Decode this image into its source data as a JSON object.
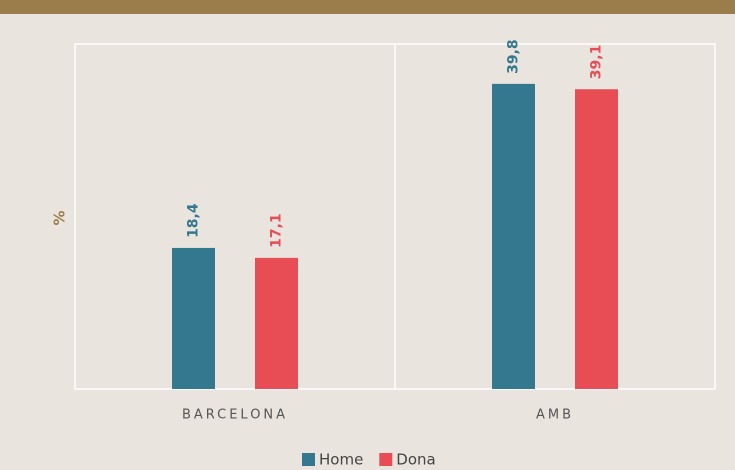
{
  "chart_data": {
    "type": "bar",
    "categories": [
      "BARCELONA",
      "AMB"
    ],
    "series": [
      {
        "name": "Home",
        "color": "#33788f",
        "values": [
          18.4,
          39.8
        ],
        "value_labels": [
          "18,4",
          "39,8"
        ]
      },
      {
        "name": "Dona",
        "color": "#e84c55",
        "values": [
          17.1,
          39.1
        ],
        "value_labels": [
          "17,1",
          "39,1"
        ]
      }
    ],
    "ylabel": "%",
    "ylim": [
      0,
      45
    ],
    "legend": "bottom"
  }
}
